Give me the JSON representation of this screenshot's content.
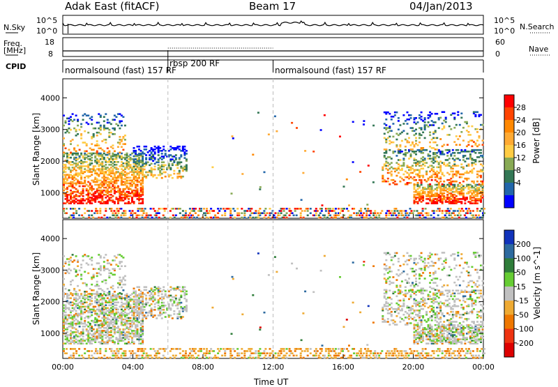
{
  "header": {
    "station": "Adak East (fitACF)",
    "beam": "Beam 17",
    "date": "04/Jan/2013"
  },
  "top_panels": {
    "nsky_label": "N.Sky",
    "nsky_ticks": [
      "10^5",
      "10^0"
    ],
    "nsearch_label": "N.Search",
    "nsearch_ticks": [
      "10^5",
      "10^0"
    ],
    "freq_label_line1": "Freq.",
    "freq_label_line2": "[MHz]",
    "freq_ticks": [
      "18",
      "8"
    ],
    "nave_label": "Nave",
    "nave_ticks": [
      "60",
      "0"
    ],
    "cpid_label": "CPID",
    "cpid_segments": [
      "normalsound (fast) 157 RF",
      "rbsp 200 RF",
      "normalsound (fast) 157 RF"
    ]
  },
  "power_colorbar": {
    "label": "Power [dB]",
    "ticks": [
      "28",
      "24",
      "20",
      "16",
      "12",
      "8",
      "4"
    ],
    "colors": [
      "#ff0000",
      "#ff4400",
      "#ff8800",
      "#ffaa33",
      "#ffcc44",
      "#88aa55",
      "#337755",
      "#2266aa",
      "#0000ff"
    ]
  },
  "velocity_colorbar": {
    "label": "Velocity [m s^-1]",
    "ticks": [
      "200",
      "100",
      "50",
      "15",
      "-15",
      "-50",
      "-100",
      "-200"
    ],
    "colors": [
      "#1133bb",
      "#2d6a9f",
      "#2f7d3a",
      "#66cc33",
      "#c0c0c0",
      "#eeaa33",
      "#ee7700",
      "#ee3311",
      "#dd0000"
    ]
  },
  "chart_data": [
    {
      "type": "heatmap",
      "title": "Power",
      "ylabel": "Slant Range [km]",
      "yticks": [
        "1000",
        "2000",
        "3000",
        "4000"
      ],
      "ylim": [
        200,
        4600
      ],
      "xlim_hours": [
        0,
        24
      ],
      "description_values": {
        "morning_echo_hours": [
          0,
          7.0
        ],
        "evening_echo_hours": [
          18.2,
          24
        ],
        "strongest_power_db": 28
      }
    },
    {
      "type": "heatmap",
      "title": "Velocity",
      "ylabel": "Slant Range [km]",
      "yticks": [
        "1000",
        "2000",
        "3000",
        "4000"
      ],
      "ylim": [
        200,
        4600
      ],
      "xlim_hours": [
        0,
        24
      ]
    }
  ],
  "x_axis": {
    "label": "Time UT",
    "ticks": [
      "00:00",
      "04:00",
      "08:00",
      "12:00",
      "16:00",
      "20:00",
      "00:00"
    ]
  }
}
